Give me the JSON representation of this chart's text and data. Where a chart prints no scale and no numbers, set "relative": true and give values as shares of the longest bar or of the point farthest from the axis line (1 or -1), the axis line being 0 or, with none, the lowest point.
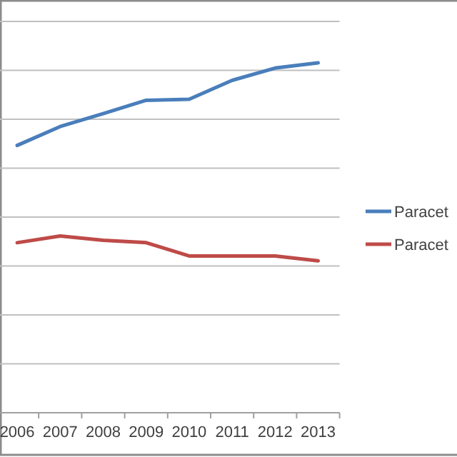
{
  "chart_data": {
    "type": "line",
    "relative": true,
    "grid": "y",
    "legend": "right",
    "line_style": "solid",
    "marker": "none",
    "categories": [
      "2006",
      "2007",
      "2008",
      "2009",
      "2010",
      "2011",
      "2012",
      "2013"
    ],
    "series": [
      {
        "name": "Paracet",
        "color": "#4a7ebb",
        "values": [
          0.764,
          0.818,
          0.855,
          0.893,
          0.896,
          0.95,
          0.985,
          1
        ]
      },
      {
        "name": "Paracet",
        "color": "#be4b48",
        "values": [
          0.486,
          0.505,
          0.493,
          0.486,
          0.448,
          0.448,
          0.448,
          0.434
        ]
      }
    ]
  }
}
